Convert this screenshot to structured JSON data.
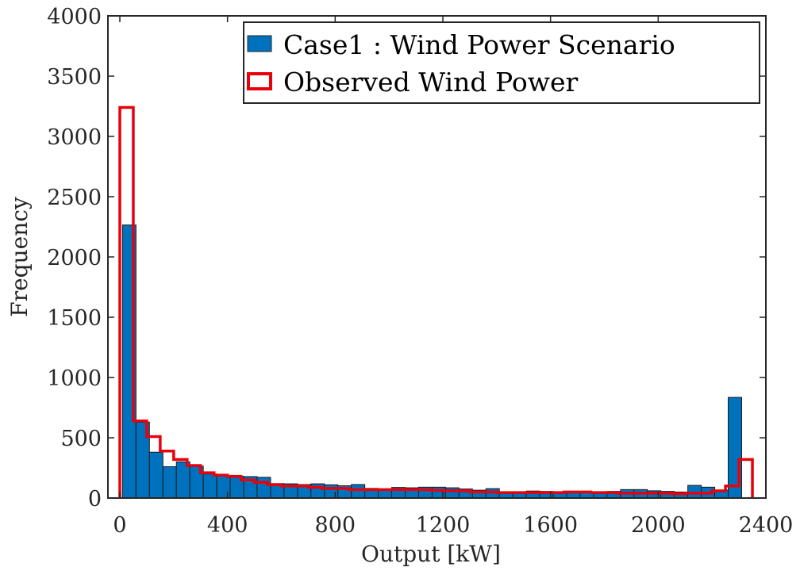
{
  "chart_data": {
    "type": "bar",
    "xlabel": "Output [kW]",
    "ylabel": "Frequency",
    "xlim": [
      0,
      2400
    ],
    "ylim": [
      0,
      4000
    ],
    "xticks": [
      0,
      400,
      800,
      1200,
      1600,
      2000,
      2400
    ],
    "yticks": [
      0,
      500,
      1000,
      1500,
      2000,
      2500,
      3000,
      3500,
      4000
    ],
    "xtick_labels": [
      "0",
      "400",
      "800",
      "1200",
      "1600",
      "2000",
      "2400"
    ],
    "ytick_labels": [
      "0",
      "500",
      "1000",
      "1500",
      "2000",
      "2500",
      "3000",
      "3500",
      "4000"
    ],
    "grid": false,
    "legend_position": "top-right",
    "series": [
      {
        "name": "Case1 : Wind Power Scenario",
        "style": "filled-bars",
        "color": "#0072BD",
        "bin_width": 50,
        "bin_starts": [
          10,
          60,
          110,
          160,
          210,
          260,
          310,
          360,
          410,
          460,
          510,
          560,
          610,
          660,
          710,
          760,
          810,
          860,
          910,
          960,
          1010,
          1060,
          1110,
          1160,
          1210,
          1260,
          1310,
          1360,
          1410,
          1460,
          1510,
          1560,
          1610,
          1660,
          1710,
          1760,
          1810,
          1860,
          1910,
          1960,
          2010,
          2060,
          2110,
          2160,
          2210,
          2260
        ],
        "values": [
          2265,
          630,
          380,
          260,
          300,
          265,
          200,
          185,
          180,
          178,
          172,
          120,
          118,
          112,
          118,
          110,
          102,
          112,
          80,
          72,
          88,
          85,
          90,
          90,
          85,
          75,
          65,
          78,
          50,
          50,
          58,
          55,
          50,
          48,
          45,
          50,
          55,
          70,
          70,
          60,
          55,
          50,
          105,
          90,
          65,
          835
        ]
      },
      {
        "name": "Observed Wind Power",
        "style": "step-outline",
        "color": "#E8000B",
        "bin_width": 50,
        "bin_starts": [
          0,
          50,
          100,
          150,
          200,
          250,
          300,
          350,
          400,
          450,
          500,
          550,
          600,
          650,
          700,
          750,
          800,
          850,
          900,
          950,
          1000,
          1050,
          1100,
          1150,
          1200,
          1250,
          1300,
          1350,
          1400,
          1450,
          1500,
          1550,
          1600,
          1650,
          1700,
          1750,
          1800,
          1850,
          1900,
          1950,
          2000,
          2050,
          2100,
          2150,
          2200,
          2250,
          2300
        ],
        "values": [
          3240,
          640,
          510,
          390,
          320,
          270,
          210,
          190,
          180,
          150,
          130,
          110,
          100,
          100,
          90,
          80,
          80,
          70,
          70,
          70,
          70,
          70,
          70,
          65,
          60,
          60,
          50,
          50,
          45,
          45,
          45,
          45,
          45,
          50,
          50,
          45,
          45,
          40,
          40,
          40,
          40,
          35,
          40,
          40,
          60,
          100,
          320
        ]
      }
    ]
  }
}
